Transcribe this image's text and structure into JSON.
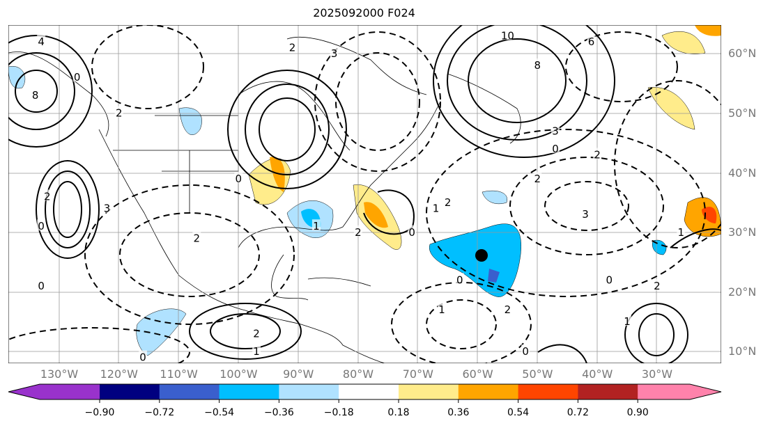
{
  "title": "2025092000 F024",
  "lat_labels": [
    "60°N",
    "50°N",
    "40°N",
    "30°N",
    "20°N",
    "10°N"
  ],
  "lon_labels": [
    "130°W",
    "120°W",
    "110°W",
    "100°W",
    "90°W",
    "80°W",
    "70°W",
    "60°W",
    "50°W",
    "40°W",
    "30°W"
  ],
  "colorbar": {
    "ticks": [
      "−0.90",
      "−0.72",
      "−0.54",
      "−0.36",
      "−0.18",
      "0.18",
      "0.36",
      "0.54",
      "0.72",
      "0.90"
    ],
    "colors": [
      "#9932CC",
      "#000080",
      "#3A5FCD",
      "#00BFFF",
      "#B0E2FF",
      "#FFFFFF",
      "#FFEC8B",
      "#FFA500",
      "#FF4500",
      "#B22222",
      "#FF82AB"
    ]
  },
  "contour_labels": [
    {
      "t": "4",
      "lon": -133,
      "lat": 62
    },
    {
      "t": "8",
      "lon": -134,
      "lat": 53
    },
    {
      "t": "10",
      "lon": -55,
      "lat": 63
    },
    {
      "t": "8",
      "lon": -50,
      "lat": 58
    },
    {
      "t": "3",
      "lon": -47,
      "lat": 47
    },
    {
      "t": "0",
      "lon": -47,
      "lat": 44
    },
    {
      "t": "2",
      "lon": -40,
      "lat": 43
    },
    {
      "t": "2",
      "lon": -50,
      "lat": 39
    },
    {
      "t": "3",
      "lon": -42,
      "lat": 33
    },
    {
      "t": "1",
      "lon": -26,
      "lat": 30
    },
    {
      "t": "3",
      "lon": -122,
      "lat": 34
    },
    {
      "t": "2",
      "lon": -132,
      "lat": 36
    },
    {
      "t": "0",
      "lon": -133,
      "lat": 31
    },
    {
      "t": "1",
      "lon": -87,
      "lat": 31
    },
    {
      "t": "2",
      "lon": -80,
      "lat": 30
    },
    {
      "t": "0",
      "lon": -71,
      "lat": 30
    },
    {
      "t": "1",
      "lon": -67,
      "lat": 34
    },
    {
      "t": "2",
      "lon": -65,
      "lat": 35
    },
    {
      "t": "0",
      "lon": -63,
      "lat": 22
    },
    {
      "t": "1",
      "lon": -66,
      "lat": 17
    },
    {
      "t": "2",
      "lon": -55,
      "lat": 17
    },
    {
      "t": "2",
      "lon": -97,
      "lat": 13
    },
    {
      "t": "1",
      "lon": -97,
      "lat": 10
    },
    {
      "t": "0",
      "lon": -116,
      "lat": 9
    },
    {
      "t": "0",
      "lon": -133,
      "lat": 21
    },
    {
      "t": "2",
      "lon": -107,
      "lat": 29
    },
    {
      "t": "0",
      "lon": -100,
      "lat": 39
    },
    {
      "t": "2",
      "lon": -120,
      "lat": 50
    },
    {
      "t": "0",
      "lon": -127,
      "lat": 56
    },
    {
      "t": "3",
      "lon": -84,
      "lat": 60
    },
    {
      "t": "2",
      "lon": -91,
      "lat": 61
    },
    {
      "t": "6",
      "lon": -41,
      "lat": 62
    },
    {
      "t": "1",
      "lon": -35,
      "lat": 15
    },
    {
      "t": "2",
      "lon": -30,
      "lat": 21
    },
    {
      "t": "0",
      "lon": -38,
      "lat": 22
    },
    {
      "t": "0",
      "lon": -52,
      "lat": 10
    }
  ]
}
